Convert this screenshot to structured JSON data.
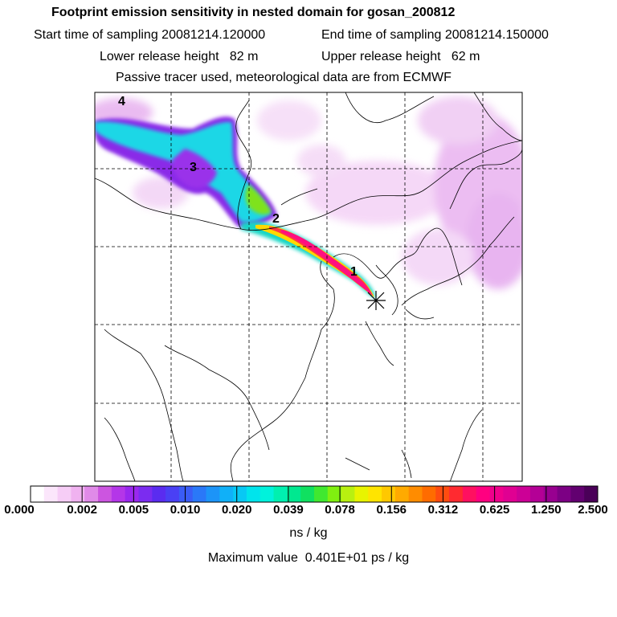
{
  "header": {
    "title": "Footprint emission sensitivity in nested domain for gosan_200812",
    "start_sampling": "Start time of sampling 20081214.120000",
    "end_sampling": "End time of sampling 20081214.150000",
    "lower_release": "Lower release height   82 m",
    "upper_release": "Upper release height   62 m",
    "tracer_note": "Passive tracer used, meteorological data are from ECMWF"
  },
  "map": {
    "markers": [
      "1",
      "2",
      "3",
      "4"
    ],
    "release_site_symbol": "*"
  },
  "colorbar": {
    "labels": [
      "0.000",
      "0.002",
      "0.005",
      "0.010",
      "0.020",
      "0.039",
      "0.078",
      "0.156",
      "0.312",
      "0.625",
      "1.250",
      "2.500"
    ],
    "colors": [
      "#ffffff",
      "#fbe6fb",
      "#f6cdf6",
      "#f0b2f0",
      "#e08ae8",
      "#cc55e0",
      "#b436e8",
      "#9a28ee",
      "#7b2cf0",
      "#5a2cf0",
      "#4a40f4",
      "#3a5cf6",
      "#2a78f8",
      "#1c94f8",
      "#10b0f8",
      "#08c8f4",
      "#00e4ec",
      "#00f2dc",
      "#00f0b0",
      "#00e890",
      "#10e060",
      "#40e830",
      "#80f010",
      "#b8f010",
      "#e8f400",
      "#ffe400",
      "#ffc800",
      "#ffaa00",
      "#ff8c00",
      "#ff6c00",
      "#ff4c10",
      "#ff2a30",
      "#ff1060",
      "#ff0080",
      "#f0008c",
      "#e00092",
      "#cc0096",
      "#b40096",
      "#980090",
      "#7c0084",
      "#620070",
      "#4a0058"
    ],
    "unit": "ns / kg"
  },
  "footer": {
    "maximum": "Maximum value  0.401E+01 ps / kg"
  }
}
